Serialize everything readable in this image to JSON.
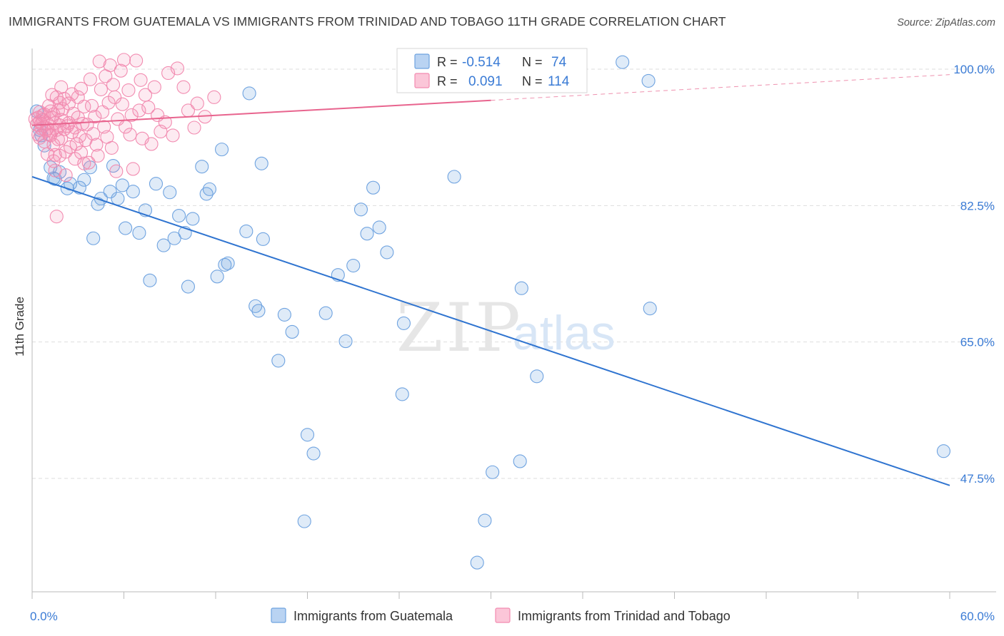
{
  "header": {
    "title": "IMMIGRANTS FROM GUATEMALA VS IMMIGRANTS FROM TRINIDAD AND TOBAGO 11TH GRADE CORRELATION CHART",
    "source": "Source: ZipAtlas.com"
  },
  "watermark": {
    "zip": "ZIP",
    "atlas": "atlas"
  },
  "stats": {
    "r_label": "R =",
    "n_label": "N =",
    "guatemala": {
      "r": "-0.514",
      "n": "74"
    },
    "trinidad": {
      "r": "0.091",
      "n": "114"
    }
  },
  "colors": {
    "guatemala": "#6fa3e0",
    "guatemala_line": "#2f74d0",
    "trinidad": "#f28bb0",
    "trinidad_line": "#e8648e",
    "axis_labels": "#3a7bd5",
    "grid": "#dddddd"
  },
  "chart_data": {
    "type": "scatter",
    "title": "IMMIGRANTS FROM GUATEMALA VS IMMIGRANTS FROM TRINIDAD AND TOBAGO 11TH GRADE CORRELATION CHART",
    "xlabel": "",
    "ylabel": "11th Grade",
    "xlim": [
      0,
      60
    ],
    "ylim": [
      29.5,
      102.5
    ],
    "x_tick_labels": [
      "0.0%",
      "60.0%"
    ],
    "y_ticks": [
      47.5,
      65.0,
      82.5,
      100.0
    ],
    "y_tick_labels": [
      "47.5%",
      "65.0%",
      "82.5%",
      "100.0%"
    ],
    "grid": true,
    "legend_position": "bottom",
    "series": [
      {
        "name": "Immigrants from Guatemala",
        "color": "#6fa3e0",
        "trend": {
          "x": [
            0,
            60
          ],
          "y": [
            86.2,
            46.6
          ]
        },
        "points": [
          [
            0.3,
            94.6
          ],
          [
            0.5,
            92.2
          ],
          [
            0.6,
            91.5
          ],
          [
            0.8,
            90.2
          ],
          [
            1.2,
            87.4
          ],
          [
            1.4,
            86.0
          ],
          [
            1.5,
            85.9
          ],
          [
            1.8,
            86.8
          ],
          [
            2.3,
            84.7
          ],
          [
            2.5,
            85.3
          ],
          [
            3.1,
            84.8
          ],
          [
            3.4,
            85.8
          ],
          [
            3.8,
            87.4
          ],
          [
            4.0,
            78.3
          ],
          [
            4.3,
            82.7
          ],
          [
            4.5,
            83.4
          ],
          [
            5.1,
            84.3
          ],
          [
            5.3,
            87.6
          ],
          [
            5.6,
            83.4
          ],
          [
            5.9,
            85.1
          ],
          [
            6.1,
            79.6
          ],
          [
            6.6,
            84.3
          ],
          [
            7.0,
            79.0
          ],
          [
            7.4,
            81.9
          ],
          [
            7.7,
            72.9
          ],
          [
            8.1,
            85.3
          ],
          [
            8.6,
            77.4
          ],
          [
            9.0,
            84.2
          ],
          [
            9.3,
            78.3
          ],
          [
            9.6,
            81.2
          ],
          [
            10.0,
            79.0
          ],
          [
            10.2,
            72.1
          ],
          [
            10.5,
            80.8
          ],
          [
            11.1,
            87.5
          ],
          [
            11.4,
            84.0
          ],
          [
            11.6,
            84.6
          ],
          [
            12.1,
            73.4
          ],
          [
            12.6,
            74.9
          ],
          [
            12.8,
            75.1
          ],
          [
            12.4,
            89.7
          ],
          [
            14.0,
            79.2
          ],
          [
            14.2,
            96.9
          ],
          [
            14.6,
            69.6
          ],
          [
            14.8,
            69.0
          ],
          [
            15.0,
            87.9
          ],
          [
            15.1,
            78.2
          ],
          [
            16.1,
            62.6
          ],
          [
            16.5,
            68.5
          ],
          [
            17.0,
            66.3
          ],
          [
            17.8,
            42.0
          ],
          [
            18.0,
            53.1
          ],
          [
            18.4,
            50.7
          ],
          [
            19.2,
            68.7
          ],
          [
            20.0,
            73.6
          ],
          [
            20.5,
            65.1
          ],
          [
            21.0,
            74.8
          ],
          [
            21.5,
            82.0
          ],
          [
            21.9,
            78.9
          ],
          [
            22.3,
            84.8
          ],
          [
            22.7,
            79.7
          ],
          [
            23.2,
            76.5
          ],
          [
            24.2,
            58.3
          ],
          [
            24.3,
            67.4
          ],
          [
            27.6,
            86.2
          ],
          [
            29.1,
            36.7
          ],
          [
            29.6,
            42.1
          ],
          [
            30.1,
            48.3
          ],
          [
            31.9,
            49.7
          ],
          [
            32.0,
            71.9
          ],
          [
            33.0,
            60.6
          ],
          [
            38.6,
            100.9
          ],
          [
            40.3,
            98.5
          ],
          [
            40.4,
            69.3
          ],
          [
            59.6,
            51.0
          ]
        ]
      },
      {
        "name": "Immigrants from Trinidad and Tobago",
        "color": "#f28bb0",
        "trend": {
          "x": [
            0,
            30
          ],
          "y": [
            92.8,
            96.0
          ]
        },
        "trend_extension": {
          "x": [
            30,
            60
          ],
          "y": [
            96.0,
            99.3
          ]
        },
        "points": [
          [
            0.2,
            93.6
          ],
          [
            0.3,
            92.9
          ],
          [
            0.4,
            93.8
          ],
          [
            0.4,
            91.6
          ],
          [
            0.5,
            93.3
          ],
          [
            0.5,
            94.5
          ],
          [
            0.5,
            91.2
          ],
          [
            0.6,
            93.0
          ],
          [
            0.6,
            92.4
          ],
          [
            0.7,
            94.1
          ],
          [
            0.7,
            93.5
          ],
          [
            0.8,
            90.7
          ],
          [
            0.8,
            94.2
          ],
          [
            0.9,
            92.1
          ],
          [
            1.0,
            93.0
          ],
          [
            1.0,
            92.4
          ],
          [
            1.0,
            89.1
          ],
          [
            1.1,
            91.6
          ],
          [
            1.1,
            95.3
          ],
          [
            1.2,
            94.6
          ],
          [
            1.2,
            91.5
          ],
          [
            1.3,
            93.8
          ],
          [
            1.3,
            92.1
          ],
          [
            1.3,
            96.7
          ],
          [
            1.4,
            94.2
          ],
          [
            1.4,
            90.3
          ],
          [
            1.4,
            88.2
          ],
          [
            1.5,
            93.1
          ],
          [
            1.5,
            87.0
          ],
          [
            1.5,
            89.0
          ],
          [
            1.6,
            92.2
          ],
          [
            1.6,
            96.4
          ],
          [
            1.6,
            81.1
          ],
          [
            1.7,
            91.0
          ],
          [
            1.7,
            94.7
          ],
          [
            1.8,
            95.7
          ],
          [
            1.8,
            92.8
          ],
          [
            1.8,
            88.9
          ],
          [
            1.9,
            97.7
          ],
          [
            1.9,
            93.5
          ],
          [
            1.9,
            91.1
          ],
          [
            2.0,
            94.9
          ],
          [
            2.1,
            96.2
          ],
          [
            2.1,
            92.3
          ],
          [
            2.2,
            89.4
          ],
          [
            2.2,
            86.4
          ],
          [
            2.3,
            92.7
          ],
          [
            2.4,
            95.6
          ],
          [
            2.4,
            93.1
          ],
          [
            2.5,
            90.0
          ],
          [
            2.6,
            91.9
          ],
          [
            2.6,
            96.8
          ],
          [
            2.7,
            94.3
          ],
          [
            2.8,
            92.5
          ],
          [
            2.8,
            88.5
          ],
          [
            2.9,
            90.4
          ],
          [
            3.0,
            93.8
          ],
          [
            3.0,
            96.4
          ],
          [
            3.1,
            91.4
          ],
          [
            3.2,
            89.3
          ],
          [
            3.2,
            97.5
          ],
          [
            3.3,
            93.0
          ],
          [
            3.4,
            87.9
          ],
          [
            3.4,
            95.2
          ],
          [
            3.5,
            90.9
          ],
          [
            3.6,
            92.9
          ],
          [
            3.7,
            88.0
          ],
          [
            3.8,
            98.7
          ],
          [
            3.9,
            95.3
          ],
          [
            4.0,
            91.7
          ],
          [
            4.1,
            93.9
          ],
          [
            4.2,
            90.3
          ],
          [
            4.3,
            88.9
          ],
          [
            4.4,
            101.0
          ],
          [
            4.5,
            97.4
          ],
          [
            4.6,
            94.5
          ],
          [
            4.7,
            92.6
          ],
          [
            4.8,
            99.1
          ],
          [
            4.9,
            91.3
          ],
          [
            5.0,
            95.7
          ],
          [
            5.1,
            100.5
          ],
          [
            5.2,
            89.9
          ],
          [
            5.3,
            98.0
          ],
          [
            5.4,
            96.4
          ],
          [
            5.5,
            86.9
          ],
          [
            5.6,
            93.6
          ],
          [
            5.8,
            99.8
          ],
          [
            5.9,
            95.5
          ],
          [
            6.0,
            101.2
          ],
          [
            6.1,
            92.6
          ],
          [
            6.3,
            97.3
          ],
          [
            6.4,
            91.6
          ],
          [
            6.5,
            94.1
          ],
          [
            6.6,
            87.2
          ],
          [
            6.8,
            101.1
          ],
          [
            7.0,
            94.7
          ],
          [
            7.1,
            98.6
          ],
          [
            7.2,
            91.1
          ],
          [
            7.4,
            96.7
          ],
          [
            7.6,
            95.1
          ],
          [
            7.8,
            90.4
          ],
          [
            8.0,
            97.7
          ],
          [
            8.2,
            94.1
          ],
          [
            8.4,
            92.0
          ],
          [
            8.7,
            93.2
          ],
          [
            8.9,
            99.5
          ],
          [
            9.2,
            91.5
          ],
          [
            9.5,
            100.1
          ],
          [
            9.9,
            97.7
          ],
          [
            10.2,
            94.7
          ],
          [
            10.6,
            92.5
          ],
          [
            10.8,
            95.6
          ],
          [
            11.3,
            93.9
          ],
          [
            11.9,
            96.4
          ]
        ]
      }
    ]
  },
  "legend": {
    "guatemala": "Immigrants from Guatemala",
    "trinidad": "Immigrants from Trinidad and Tobago"
  }
}
